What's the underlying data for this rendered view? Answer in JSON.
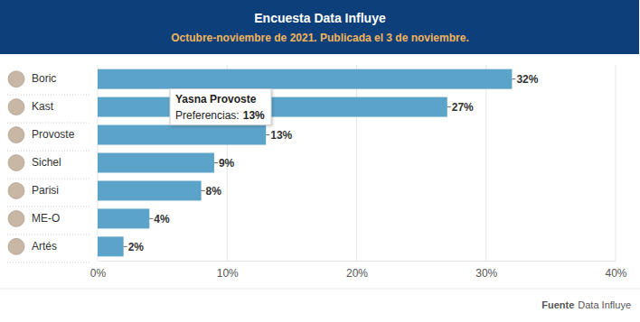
{
  "chart_data": {
    "type": "bar",
    "title": "Encuesta Data Influye",
    "subtitle": "Octubre-noviembre de 2021. Publicada el 3 de noviembre.",
    "orientation": "horizontal",
    "categories": [
      "Boric",
      "Kast",
      "Provoste",
      "Sichel",
      "Parisi",
      "ME-O",
      "Artés"
    ],
    "values": [
      32,
      27,
      13,
      9,
      8,
      4,
      2
    ],
    "value_labels": [
      "32%",
      "27%",
      "13%",
      "9%",
      "8%",
      "4%",
      "2%"
    ],
    "color": "#5ba3c9",
    "xlim": [
      0,
      40
    ],
    "xticks": [
      {
        "value": 0,
        "label": "0%"
      },
      {
        "value": 10,
        "label": "10%"
      },
      {
        "value": 20,
        "label": "20%"
      },
      {
        "value": 30,
        "label": "30%"
      },
      {
        "value": 40,
        "label": "40%"
      }
    ],
    "grid": true,
    "data_labels": true,
    "tooltip": {
      "title": "Yasna Provoste",
      "label": "Preferencias:",
      "value_label": "13%"
    },
    "source": {
      "label": "Fuente",
      "text": "Data Influye"
    }
  }
}
